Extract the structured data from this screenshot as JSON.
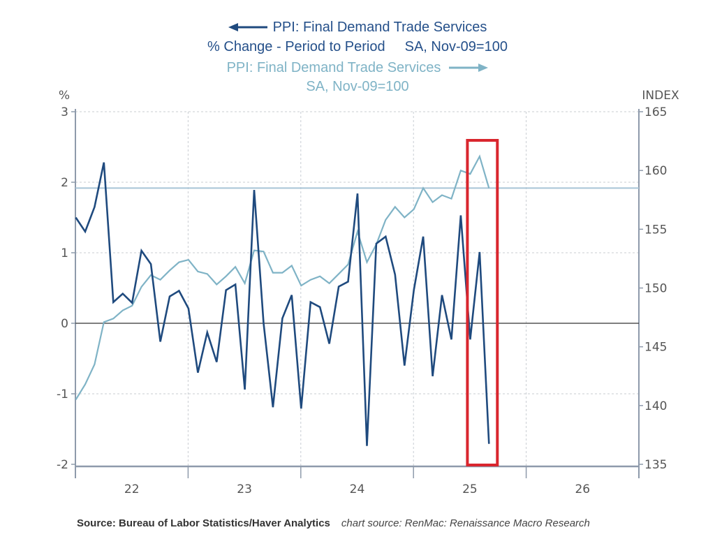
{
  "legend": {
    "series1_line1": "PPI: Final Demand Trade Services",
    "series1_line2": "% Change - Period to Period",
    "series1_line2b": "SA, Nov-09=100",
    "series2_line1": "PPI: Final Demand Trade Services",
    "series2_line2": "SA, Nov-09=100",
    "series1_arrow_icon": "left-arrow-icon",
    "series2_arrow_icon": "right-arrow-icon"
  },
  "footer": {
    "source": "Source:  Bureau of Labor Statistics/Haver Analytics",
    "chart_source": "chart source: RenMac: Renaissance Macro Research"
  },
  "colors": {
    "series_dark": "#1f4a7e",
    "series_light": "#7fb3c6",
    "highlight_box": "#d9262e",
    "reference_line": "#a8c4d6",
    "axis": "#8e9aab",
    "zero_line": "#333333",
    "grid": "#c8ccd2"
  },
  "chart_data": {
    "type": "line",
    "title": "PPI: Final Demand Trade Services",
    "left_axis": {
      "label": "%",
      "ylim": [
        -2,
        3
      ],
      "ticks": [
        "3",
        "2",
        "1",
        "0",
        "-1",
        "-2"
      ]
    },
    "right_axis": {
      "label": "INDEX",
      "ylim": [
        135,
        165
      ],
      "ticks": [
        "165",
        "160",
        "155",
        "150",
        "145",
        "140",
        "135"
      ]
    },
    "x_axis": {
      "ticks": [
        "22",
        "23",
        "24",
        "25",
        "26"
      ],
      "range": [
        "2022-01",
        "2026-12"
      ]
    },
    "grid": true,
    "highlight": {
      "type": "box",
      "x_start": "2025-07",
      "x_end": "2025-09"
    },
    "reference_line": {
      "axis": "right",
      "value": 158.5
    },
    "x": [
      "2022-01",
      "2022-02",
      "2022-03",
      "2022-04",
      "2022-05",
      "2022-06",
      "2022-07",
      "2022-08",
      "2022-09",
      "2022-10",
      "2022-11",
      "2022-12",
      "2023-01",
      "2023-02",
      "2023-03",
      "2023-04",
      "2023-05",
      "2023-06",
      "2023-07",
      "2023-08",
      "2023-09",
      "2023-10",
      "2023-11",
      "2023-12",
      "2024-01",
      "2024-02",
      "2024-03",
      "2024-04",
      "2024-05",
      "2024-06",
      "2024-07",
      "2024-08",
      "2024-09",
      "2024-10",
      "2024-11",
      "2024-12",
      "2025-01",
      "2025-02",
      "2025-03",
      "2025-04",
      "2025-05",
      "2025-06",
      "2025-07",
      "2025-08",
      "2025-09"
    ],
    "series": [
      {
        "name": "PPI: Final Demand Trade Services % Change - Period to Period",
        "axis": "left",
        "values": [
          1.5,
          1.3,
          1.65,
          2.28,
          0.3,
          0.42,
          0.29,
          1.03,
          0.84,
          -0.26,
          0.38,
          0.46,
          0.21,
          -0.7,
          -0.13,
          -0.55,
          0.47,
          0.55,
          -0.94,
          1.89,
          0.0,
          -1.19,
          0.07,
          0.4,
          -1.21,
          0.3,
          0.23,
          -0.29,
          0.52,
          0.59,
          1.84,
          -1.74,
          1.13,
          1.23,
          0.69,
          -0.6,
          0.47,
          1.23,
          -0.75,
          0.4,
          -0.23,
          1.53,
          -0.23,
          1.01,
          -1.71
        ]
      },
      {
        "name": "PPI: Final Demand Trade Services SA, Nov-09=100",
        "axis": "right",
        "values": [
          140.5,
          141.8,
          143.5,
          147.1,
          147.4,
          148.1,
          148.5,
          150.1,
          151.1,
          150.7,
          151.5,
          152.2,
          152.4,
          151.4,
          151.2,
          150.3,
          151.0,
          151.8,
          150.4,
          153.2,
          153.1,
          151.3,
          151.3,
          151.9,
          150.2,
          150.7,
          151.0,
          150.4,
          151.2,
          152.0,
          154.8,
          152.2,
          153.7,
          155.8,
          156.9,
          156.0,
          156.7,
          158.5,
          157.3,
          157.9,
          157.6,
          160.0,
          159.7,
          161.2,
          158.5
        ]
      }
    ]
  }
}
